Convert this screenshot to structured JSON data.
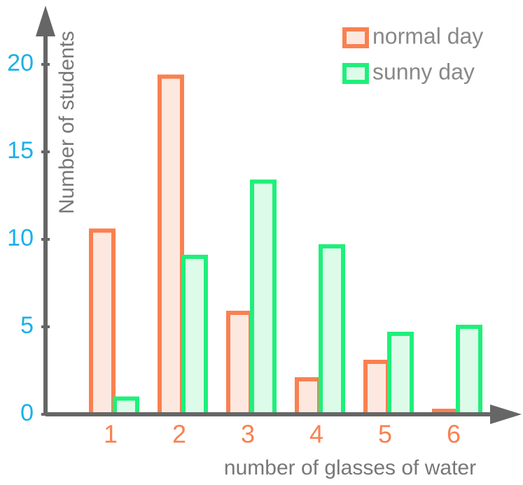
{
  "chart_data": {
    "type": "bar",
    "x_label": "number of glasses of water",
    "y_label": "Number of students",
    "categories": [
      "1",
      "2",
      "3",
      "4",
      "5",
      "6"
    ],
    "series": [
      {
        "name": "normal day",
        "color": "#fa8050",
        "fill": "#fde8df",
        "values": [
          10.5,
          19.3,
          5.8,
          2.0,
          3.0,
          0.2
        ]
      },
      {
        "name": "sunny day",
        "color": "#1ef07a",
        "fill": "#ddfbe9",
        "values": [
          0.9,
          9.0,
          13.3,
          9.6,
          4.6,
          5.0
        ]
      }
    ],
    "ylim": [
      0,
      23
    ],
    "yticks": [
      0,
      5,
      10,
      15,
      20
    ],
    "legend": "top-right"
  }
}
